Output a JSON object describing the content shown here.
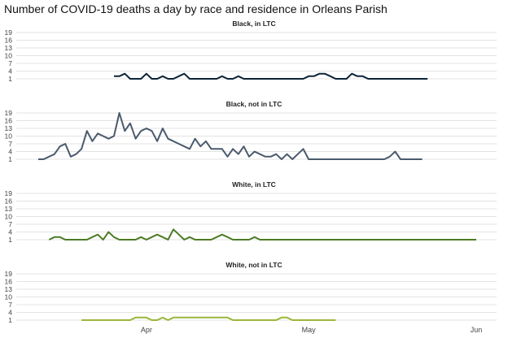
{
  "title": "Number of COVID-19 deaths a day by race and residence in Orleans Parish",
  "chart_data": {
    "type": "line",
    "title": "Number of COVID-19 deaths a day by race and residence in Orleans Parish",
    "x_start": "2020-03-12",
    "x_end": "2020-06-01",
    "x_ticks": [
      {
        "date": "2020-04-01",
        "label": "Apr"
      },
      {
        "date": "2020-05-01",
        "label": "May"
      },
      {
        "date": "2020-06-01",
        "label": "Jun"
      }
    ],
    "y_ticks": [
      1,
      4,
      7,
      10,
      13,
      16,
      19
    ],
    "ylim": [
      0,
      20
    ],
    "grid": true,
    "panels": [
      {
        "title": "Black, in LTC",
        "color": "#0d2438",
        "x": [
          "2020-03-26",
          "2020-03-27",
          "2020-03-28",
          "2020-03-29",
          "2020-03-30",
          "2020-03-31",
          "2020-04-01",
          "2020-04-02",
          "2020-04-03",
          "2020-04-04",
          "2020-04-05",
          "2020-04-06",
          "2020-04-07",
          "2020-04-08",
          "2020-04-09",
          "2020-04-10",
          "2020-04-11",
          "2020-04-12",
          "2020-04-13",
          "2020-04-14",
          "2020-04-15",
          "2020-04-16",
          "2020-04-17",
          "2020-04-18",
          "2020-04-19",
          "2020-04-20",
          "2020-04-21",
          "2020-04-22",
          "2020-04-23",
          "2020-04-24",
          "2020-04-25",
          "2020-04-26",
          "2020-04-27",
          "2020-04-28",
          "2020-04-29",
          "2020-04-30",
          "2020-05-01",
          "2020-05-02",
          "2020-05-03",
          "2020-05-04",
          "2020-05-05",
          "2020-05-06",
          "2020-05-07",
          "2020-05-08",
          "2020-05-09",
          "2020-05-10",
          "2020-05-11",
          "2020-05-12",
          "2020-05-13",
          "2020-05-14",
          "2020-05-15",
          "2020-05-16",
          "2020-05-17",
          "2020-05-18",
          "2020-05-19",
          "2020-05-20",
          "2020-05-21",
          "2020-05-22",
          "2020-05-23"
        ],
        "values": [
          2,
          2,
          3,
          1,
          1,
          1,
          3,
          1,
          1,
          2,
          1,
          1,
          2,
          3,
          1,
          1,
          1,
          1,
          1,
          1,
          2,
          1,
          1,
          2,
          1,
          1,
          1,
          1,
          1,
          1,
          1,
          1,
          1,
          1,
          1,
          1,
          2,
          2,
          3,
          3,
          2,
          1,
          1,
          1,
          3,
          2,
          2,
          1,
          1,
          1,
          1,
          1,
          1,
          1,
          1,
          1,
          1,
          1,
          1
        ]
      },
      {
        "title": "Black, not in LTC",
        "color": "#4b5a6d",
        "x": [
          "2020-03-12",
          "2020-03-13",
          "2020-03-14",
          "2020-03-15",
          "2020-03-16",
          "2020-03-17",
          "2020-03-18",
          "2020-03-19",
          "2020-03-20",
          "2020-03-21",
          "2020-03-22",
          "2020-03-23",
          "2020-03-24",
          "2020-03-25",
          "2020-03-26",
          "2020-03-27",
          "2020-03-28",
          "2020-03-29",
          "2020-03-30",
          "2020-03-31",
          "2020-04-01",
          "2020-04-02",
          "2020-04-03",
          "2020-04-04",
          "2020-04-05",
          "2020-04-06",
          "2020-04-07",
          "2020-04-08",
          "2020-04-09",
          "2020-04-10",
          "2020-04-11",
          "2020-04-12",
          "2020-04-13",
          "2020-04-14",
          "2020-04-15",
          "2020-04-16",
          "2020-04-17",
          "2020-04-18",
          "2020-04-19",
          "2020-04-20",
          "2020-04-21",
          "2020-04-22",
          "2020-04-23",
          "2020-04-24",
          "2020-04-25",
          "2020-04-26",
          "2020-04-27",
          "2020-04-28",
          "2020-04-29",
          "2020-04-30",
          "2020-05-01",
          "2020-05-02",
          "2020-05-03",
          "2020-05-04",
          "2020-05-05",
          "2020-05-06",
          "2020-05-07",
          "2020-05-08",
          "2020-05-09",
          "2020-05-10",
          "2020-05-11",
          "2020-05-12",
          "2020-05-13",
          "2020-05-14",
          "2020-05-15",
          "2020-05-16",
          "2020-05-17",
          "2020-05-18",
          "2020-05-19",
          "2020-05-20",
          "2020-05-21",
          "2020-05-22"
        ],
        "values": [
          1,
          1,
          2,
          3,
          6,
          7,
          2,
          3,
          5,
          12,
          8,
          11,
          10,
          9,
          10,
          19,
          12,
          15,
          9,
          12,
          13,
          12,
          8,
          13,
          9,
          8,
          7,
          6,
          5,
          9,
          6,
          8,
          5,
          5,
          5,
          2,
          5,
          3,
          6,
          2,
          4,
          3,
          2,
          2,
          3,
          1,
          3,
          1,
          3,
          5,
          1,
          1,
          1,
          1,
          1,
          1,
          1,
          1,
          1,
          1,
          1,
          1,
          1,
          1,
          1,
          2,
          4,
          1,
          1,
          1,
          1,
          1
        ]
      },
      {
        "title": "White, in LTC",
        "color": "#4e7c26",
        "x": [
          "2020-03-14",
          "2020-03-15",
          "2020-03-16",
          "2020-03-17",
          "2020-03-18",
          "2020-03-19",
          "2020-03-20",
          "2020-03-21",
          "2020-03-22",
          "2020-03-23",
          "2020-03-24",
          "2020-03-25",
          "2020-03-26",
          "2020-03-27",
          "2020-03-28",
          "2020-03-29",
          "2020-03-30",
          "2020-03-31",
          "2020-04-01",
          "2020-04-02",
          "2020-04-03",
          "2020-04-04",
          "2020-04-05",
          "2020-04-06",
          "2020-04-07",
          "2020-04-08",
          "2020-04-09",
          "2020-04-10",
          "2020-04-11",
          "2020-04-12",
          "2020-04-13",
          "2020-04-14",
          "2020-04-15",
          "2020-04-16",
          "2020-04-17",
          "2020-04-18",
          "2020-04-19",
          "2020-04-20",
          "2020-04-21",
          "2020-04-22",
          "2020-04-23",
          "2020-04-24",
          "2020-04-25",
          "2020-04-26",
          "2020-04-27",
          "2020-06-01"
        ],
        "values": [
          1,
          2,
          2,
          1,
          1,
          1,
          1,
          1,
          2,
          3,
          1,
          4,
          2,
          1,
          1,
          1,
          1,
          2,
          1,
          2,
          3,
          2,
          1,
          5,
          3,
          1,
          2,
          1,
          1,
          1,
          1,
          2,
          3,
          2,
          1,
          1,
          1,
          1,
          2,
          1,
          1,
          1,
          1,
          1,
          1,
          1
        ]
      },
      {
        "title": "White, not in LTC",
        "color": "#9cb63b",
        "x": [
          "2020-03-20",
          "2020-03-21",
          "2020-03-22",
          "2020-03-23",
          "2020-03-24",
          "2020-03-25",
          "2020-03-26",
          "2020-03-27",
          "2020-03-28",
          "2020-03-29",
          "2020-03-30",
          "2020-03-31",
          "2020-04-01",
          "2020-04-02",
          "2020-04-03",
          "2020-04-04",
          "2020-04-05",
          "2020-04-06",
          "2020-04-07",
          "2020-04-08",
          "2020-04-09",
          "2020-04-10",
          "2020-04-11",
          "2020-04-12",
          "2020-04-13",
          "2020-04-14",
          "2020-04-15",
          "2020-04-16",
          "2020-04-17",
          "2020-04-18",
          "2020-04-19",
          "2020-04-20",
          "2020-04-21",
          "2020-04-22",
          "2020-04-23",
          "2020-04-24",
          "2020-04-25",
          "2020-04-26",
          "2020-04-27",
          "2020-04-28",
          "2020-04-29",
          "2020-04-30",
          "2020-05-01",
          "2020-05-02",
          "2020-05-03",
          "2020-05-04",
          "2020-05-05",
          "2020-05-06"
        ],
        "values": [
          1,
          1,
          1,
          1,
          1,
          1,
          1,
          1,
          1,
          1,
          2,
          2,
          2,
          1,
          1,
          2,
          1,
          2,
          2,
          2,
          2,
          2,
          2,
          2,
          2,
          2,
          2,
          2,
          1,
          1,
          1,
          1,
          1,
          1,
          1,
          1,
          1,
          2,
          2,
          1,
          1,
          1,
          1,
          1,
          1,
          1,
          1,
          1
        ]
      }
    ]
  }
}
